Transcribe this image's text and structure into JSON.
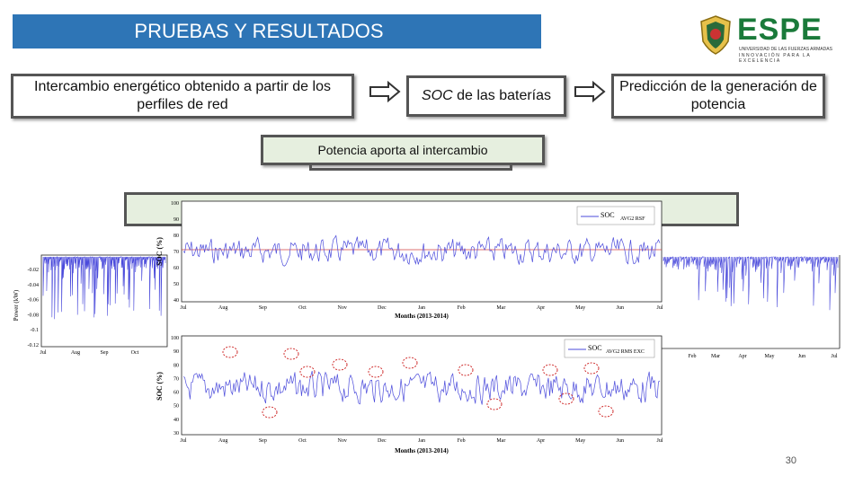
{
  "slide": {
    "title": "PRUEBAS Y RESULTADOS",
    "page_number": "30"
  },
  "logo": {
    "name": "ESPE",
    "line1": "UNIVERSIDAD DE LAS FUERZAS ARMADAS",
    "line2": "INNOVACIÓN PARA LA EXCELENCIA",
    "accent": "#1a7a3a"
  },
  "flow": {
    "box1": "Intercambio energético obtenido a partir de los perfiles de red",
    "box2_em": "SOC",
    "box2_rest": " de las baterías",
    "box3": "Predicción de la generación de potencia",
    "box4": "Potencia aporta al intercambio"
  },
  "chart_top": {
    "legend_main": "SOC",
    "legend_sub": "AVG2 RSF",
    "ylabel": "SOC (%)",
    "xlabel": "Months (2013-2014)",
    "yticks": [
      "100",
      "90",
      "80",
      "70",
      "60",
      "50",
      "40"
    ],
    "months": [
      "Jul",
      "Aug",
      "Sep",
      "Oct",
      "Nov",
      "Dec",
      "Jan",
      "Feb",
      "Mar",
      "Apr",
      "May",
      "Jun",
      "Jul"
    ]
  },
  "chart_bottom": {
    "legend_main": "SOC",
    "legend_sub": "AVG2 RMS EXC",
    "ylabel": "SOC (%)",
    "xlabel": "Months (2013-2014)",
    "yticks": [
      "100",
      "90",
      "80",
      "70",
      "60",
      "50",
      "40",
      "30"
    ],
    "months": [
      "Jul",
      "Aug",
      "Sep",
      "Oct",
      "Nov",
      "Dec",
      "Jan",
      "Feb",
      "Mar",
      "Apr",
      "May",
      "Jun",
      "Jul"
    ]
  },
  "chart_left": {
    "ylabel": "Power (kW)",
    "yticks": [
      "-0.02",
      "-0.04",
      "-0.06",
      "-0.08",
      "-0.1",
      "-0.12"
    ],
    "months": [
      "Jul",
      "Aug",
      "Sep",
      "Oct"
    ]
  },
  "chart_right": {
    "months": [
      "Feb",
      "Mar",
      "Apr",
      "May",
      "Jun",
      "Jul"
    ]
  },
  "colors": {
    "title_bg": "#2e75b6",
    "series": "#4b4bdb",
    "reference_line": "#d04040",
    "circle": "#d03030",
    "green_box": "#e6efdf"
  }
}
